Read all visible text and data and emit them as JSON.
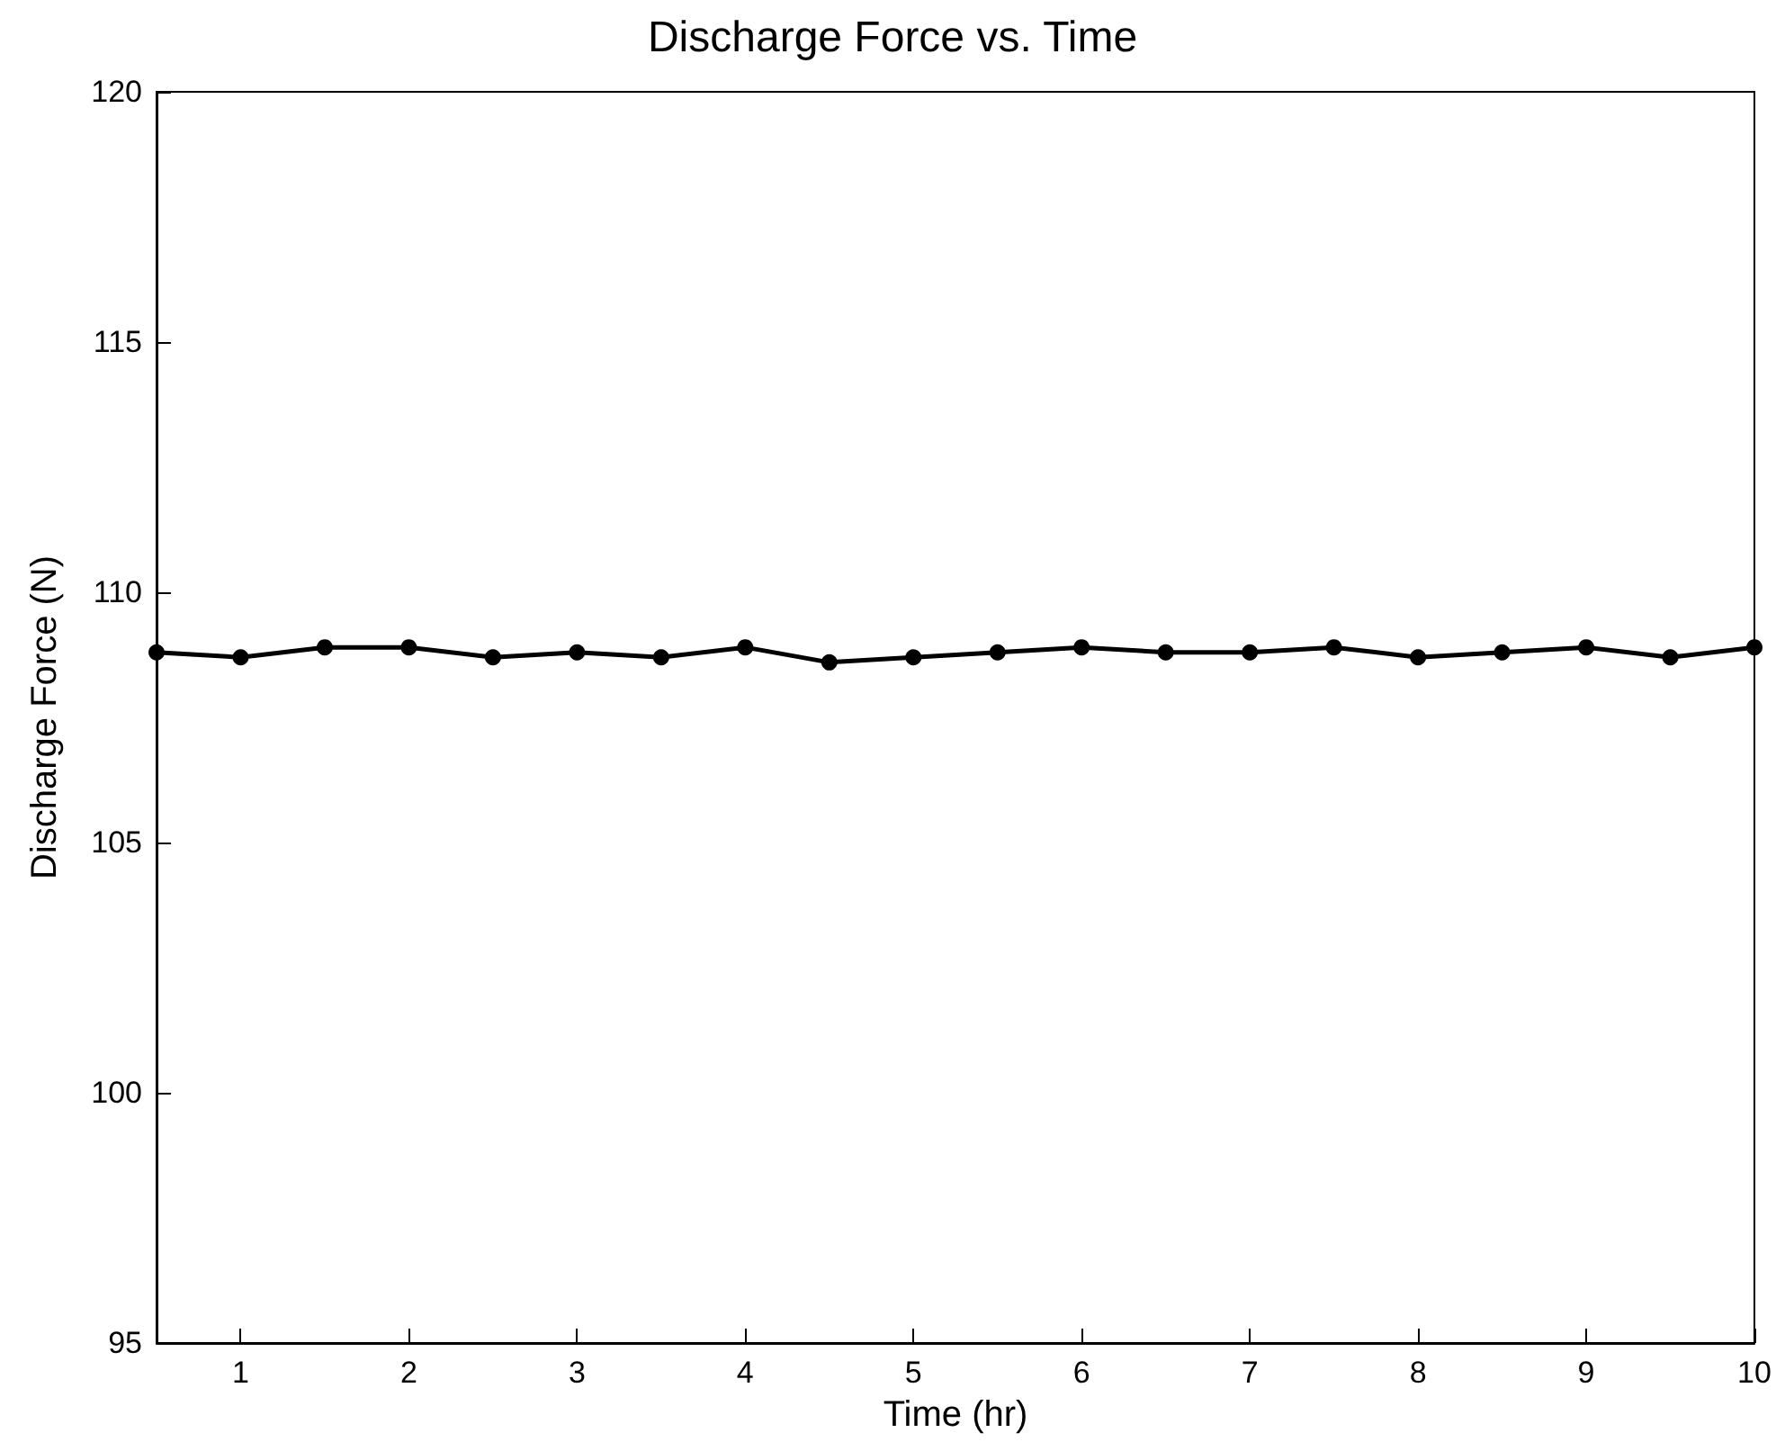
{
  "chart_data": {
    "type": "line",
    "title": "Discharge Force vs. Time",
    "xlabel": "Time (hr)",
    "ylabel": "Discharge Force (N)",
    "x": [
      0.5,
      1,
      1.5,
      2,
      2.5,
      3,
      3.5,
      4,
      4.5,
      5,
      5.5,
      6,
      6.5,
      7,
      7.5,
      8,
      8.5,
      9,
      9.5,
      10
    ],
    "series": [
      {
        "color": "#000000",
        "values": [
          108.8,
          108.7,
          108.9,
          108.9,
          108.7,
          108.8,
          108.7,
          108.9,
          108.6,
          108.7,
          108.8,
          108.9,
          108.8,
          108.8,
          108.9,
          108.7,
          108.8,
          108.9,
          108.7,
          108.9
        ]
      }
    ],
    "xlim": [
      0.5,
      10
    ],
    "xticks": [
      1,
      2,
      3,
      4,
      5,
      6,
      7,
      8,
      9,
      10
    ],
    "ylim": [
      95,
      120
    ],
    "yticks": [
      95,
      100,
      105,
      110,
      115,
      120
    ],
    "grid": false,
    "marker": "circle",
    "line_style": "solid"
  }
}
